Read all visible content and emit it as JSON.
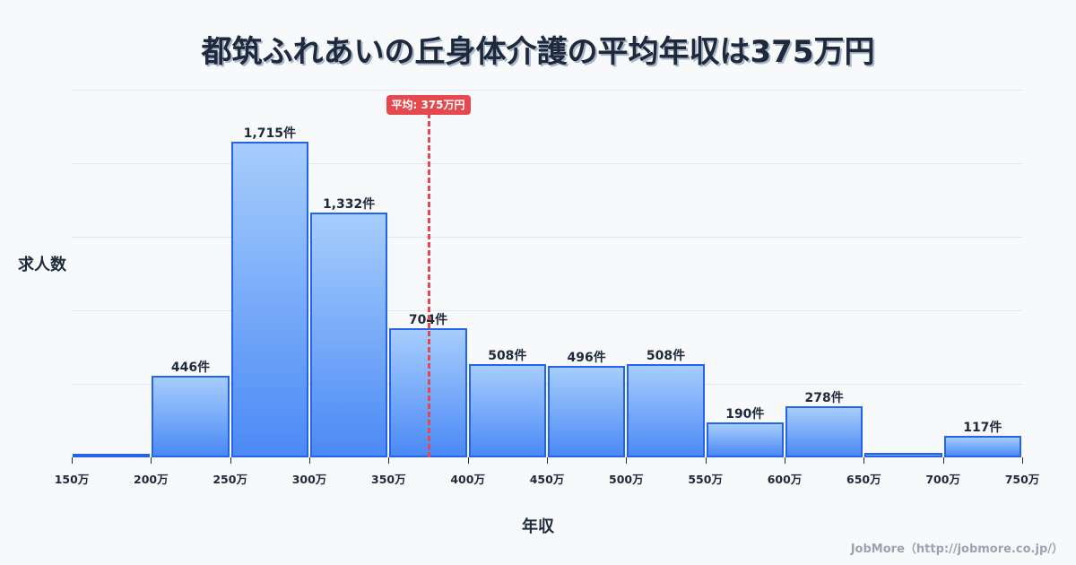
{
  "title": "都筑ふれあいの丘身体介護の平均年収は375万円",
  "ylabel": "求人数",
  "xlabel": "年収",
  "average": {
    "label": "平均: 375万円",
    "value": 375
  },
  "credit": "JobMore（http://jobmore.co.jp/）",
  "colors": {
    "bar_top": "#a6cdfc",
    "bar_bottom": "#4b8af5",
    "bar_border": "#2563eb",
    "average_line": "#e5484d",
    "text": "#1e293b",
    "grid": "#e2e6ee",
    "background": "#f8f9fb"
  },
  "x_ticks": [
    "150万",
    "200万",
    "250万",
    "300万",
    "350万",
    "400万",
    "450万",
    "500万",
    "550万",
    "600万",
    "650万",
    "700万",
    "750万"
  ],
  "bars": [
    {
      "range": "150-200万",
      "value": 5,
      "label": ""
    },
    {
      "range": "200-250万",
      "value": 446,
      "label": "446件"
    },
    {
      "range": "250-300万",
      "value": 1715,
      "label": "1,715件"
    },
    {
      "range": "300-350万",
      "value": 1332,
      "label": "1,332件"
    },
    {
      "range": "350-400万",
      "value": 704,
      "label": "704件"
    },
    {
      "range": "400-450万",
      "value": 508,
      "label": "508件"
    },
    {
      "range": "450-500万",
      "value": 496,
      "label": "496件"
    },
    {
      "range": "500-550万",
      "value": 508,
      "label": "508件"
    },
    {
      "range": "550-600万",
      "value": 190,
      "label": "190件"
    },
    {
      "range": "600-650万",
      "value": 278,
      "label": "278件"
    },
    {
      "range": "650-700万",
      "value": 25,
      "label": ""
    },
    {
      "range": "700-750万",
      "value": 117,
      "label": "117件"
    }
  ],
  "chart_data": {
    "type": "bar",
    "title": "都筑ふれあいの丘身体介護の平均年収は375万円",
    "xlabel": "年収",
    "ylabel": "求人数",
    "categories": [
      "150-200万",
      "200-250万",
      "250-300万",
      "300-350万",
      "350-400万",
      "400-450万",
      "450-500万",
      "500-550万",
      "550-600万",
      "600-650万",
      "650-700万",
      "700-750万"
    ],
    "values": [
      5,
      446,
      1715,
      1332,
      704,
      508,
      496,
      508,
      190,
      278,
      25,
      117
    ],
    "x_tick_labels": [
      "150万",
      "200万",
      "250万",
      "300万",
      "350万",
      "400万",
      "450万",
      "500万",
      "550万",
      "600万",
      "650万",
      "700万",
      "750万"
    ],
    "xlim": [
      150,
      750
    ],
    "ylim": [
      0,
      2000
    ],
    "grid": "horizontal",
    "annotations": [
      {
        "type": "vline",
        "x": 375,
        "label": "平均: 375万円",
        "style": "dashed",
        "color": "#e5484d"
      }
    ],
    "legend": "none"
  }
}
